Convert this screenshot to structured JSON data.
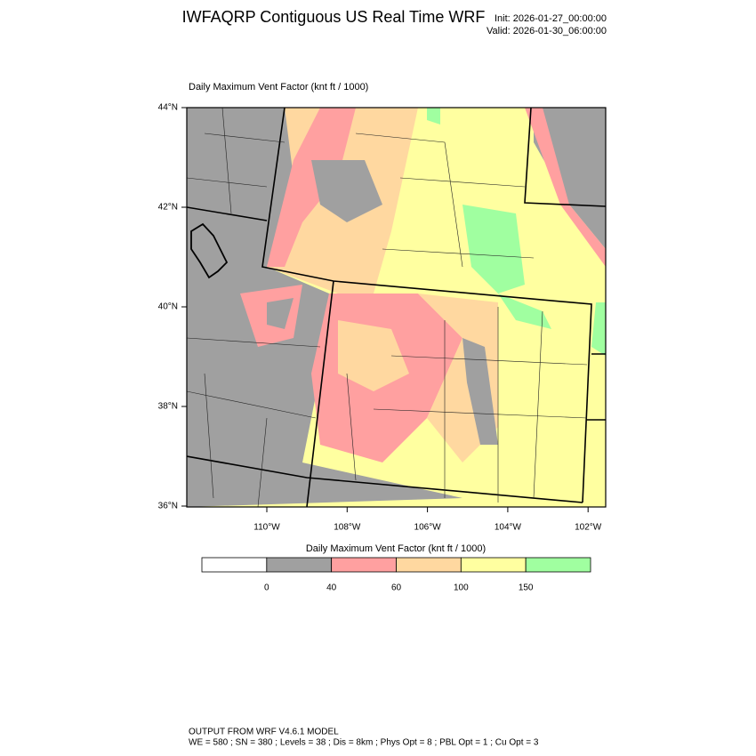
{
  "header": {
    "title": "IWFAQRP Contiguous US Real Time WRF",
    "init": "Init: 2026-01-27_00:00:00",
    "valid": "Valid: 2026-01-30_06:00:00"
  },
  "map": {
    "subtitle": "Daily Maximum Vent Factor   (knt ft / 1000)",
    "lat_labels": [
      "44°N",
      "42°N",
      "40°N",
      "38°N",
      "36°N"
    ],
    "lon_labels": [
      "110°W",
      "108°W",
      "106°W",
      "104°W",
      "102°W"
    ]
  },
  "colorbar": {
    "title": "Daily Maximum Vent Factor  (knt ft / 1000)",
    "colors": [
      "#ffffff",
      "#a0a0a0",
      "#ffa0a0",
      "#ffd8a0",
      "#ffffa0",
      "#a0ffa0"
    ],
    "labels": [
      "0",
      "40",
      "60",
      "100",
      "150"
    ]
  },
  "footer": {
    "line1": "OUTPUT FROM WRF V4.6.1 MODEL",
    "line2": "WE = 580 ; SN = 380 ; Levels = 38 ; Dis = 8km ; Phys Opt = 8 ; PBL Opt = 1 ; Cu Opt = 3"
  }
}
